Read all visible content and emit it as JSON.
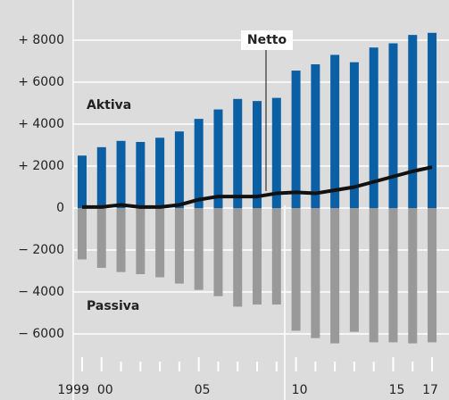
{
  "chart_data": {
    "type": "bar",
    "categories": [
      "1999",
      "00",
      null,
      null,
      null,
      null,
      "05",
      null,
      null,
      null,
      null,
      "10",
      null,
      null,
      null,
      null,
      "15",
      null,
      "17"
    ],
    "series": [
      {
        "name": "Aktiva",
        "color": "#0b5fa5",
        "values": [
          2500,
          2900,
          3200,
          3150,
          3350,
          3650,
          4250,
          4700,
          5200,
          5100,
          5250,
          6550,
          6850,
          7300,
          6950,
          7650,
          7850,
          8250,
          8350
        ]
      },
      {
        "name": "Passiva",
        "color": "#999999",
        "values": [
          -2450,
          -2850,
          -3050,
          -3150,
          -3300,
          -3600,
          -3900,
          -4200,
          -4700,
          -4600,
          -4600,
          -5850,
          -6200,
          -6450,
          -5900,
          -6400,
          -6400,
          -6450,
          -6400
        ]
      },
      {
        "name": "Netto",
        "color": "#111111",
        "type": "line",
        "values": [
          50,
          50,
          150,
          50,
          50,
          150,
          400,
          550,
          550,
          550,
          700,
          750,
          700,
          850,
          1000,
          1250,
          1500,
          1750,
          1950
        ]
      }
    ],
    "ylim": [
      -7500,
      9000
    ],
    "yticks": [
      {
        "value": 8000,
        "label": "+ 8000"
      },
      {
        "value": 6000,
        "label": "+ 6000"
      },
      {
        "value": 4000,
        "label": "+ 4000"
      },
      {
        "value": 2000,
        "label": "+ 2000"
      },
      0,
      {
        "value": -2000,
        "label": "− 2000"
      },
      {
        "value": -4000,
        "label": "− 4000"
      },
      {
        "value": -6000,
        "label": "− 6000"
      }
    ],
    "grid": true
  }
}
